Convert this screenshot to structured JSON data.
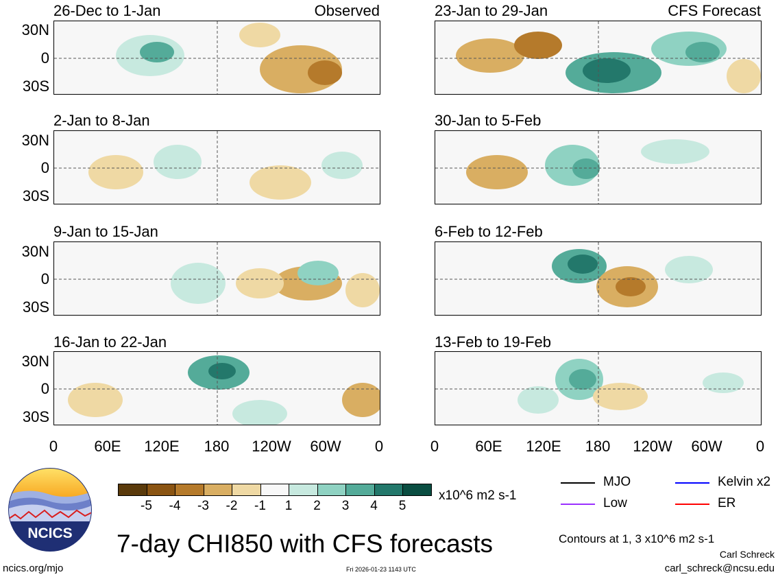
{
  "panels": [
    {
      "title": "26-Dec to 1-Jan",
      "tag": "Observed"
    },
    {
      "title": "2-Jan to 8-Jan",
      "tag": ""
    },
    {
      "title": "9-Jan to 15-Jan",
      "tag": ""
    },
    {
      "title": "16-Jan to 22-Jan",
      "tag": ""
    },
    {
      "title": "23-Jan to 29-Jan",
      "tag": "CFS Forecast"
    },
    {
      "title": "30-Jan to 5-Feb",
      "tag": ""
    },
    {
      "title": "6-Feb to 12-Feb",
      "tag": ""
    },
    {
      "title": "13-Feb to 19-Feb",
      "tag": ""
    }
  ],
  "lat_labels": [
    "30N",
    "0",
    "30S"
  ],
  "lon_labels": [
    "0",
    "60E",
    "120E",
    "180",
    "120W",
    "60W",
    "0"
  ],
  "colorbar": {
    "labels": [
      "-5",
      "-4",
      "-3",
      "-2",
      "-1",
      "1",
      "2",
      "3",
      "4",
      "5"
    ],
    "colors": [
      "#5a3a0b",
      "#8a5412",
      "#b57a2b",
      "#d9ae62",
      "#efd9a4",
      "#f8f8f8",
      "#c7e9df",
      "#8fd2c2",
      "#54ab99",
      "#23786b",
      "#0a4d41"
    ],
    "units": "x10^6 m2 s-1"
  },
  "legend": [
    {
      "label": "MJO",
      "color": "#000000"
    },
    {
      "label": "Kelvin x2",
      "color": "#0000ff"
    },
    {
      "label": "Low",
      "color": "#9b30ff"
    },
    {
      "label": "ER",
      "color": "#ff0000"
    }
  ],
  "logo_text": "NCICS",
  "main_title": "7-day CHI850 with CFS forecasts",
  "contour_note": "Contours at 1, 3 x10^6 m2 s-1",
  "author": "Carl Schreck",
  "email": "carl_schreck@ncsu.edu",
  "website": "ncics.org/mjo",
  "timestamp": "Fri 2026-01-23 1143 UTC"
}
